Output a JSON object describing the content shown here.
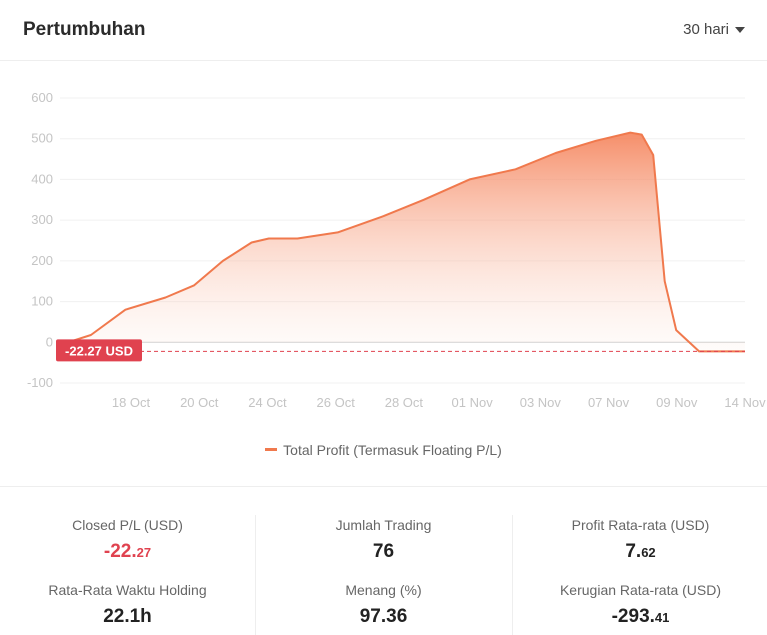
{
  "header": {
    "title": "Pertumbuhan",
    "range_label": "30 hari"
  },
  "chart_data": {
    "type": "area",
    "title": "Pertumbuhan",
    "xlabel": "",
    "ylabel": "",
    "ylim": [
      -100,
      600
    ],
    "yticks": [
      600,
      500,
      400,
      300,
      200,
      100,
      0,
      -100
    ],
    "xticks": [
      "18 Oct",
      "20 Oct",
      "24 Oct",
      "26 Oct",
      "28 Oct",
      "01 Nov",
      "03 Nov",
      "07 Nov",
      "09 Nov",
      "14 Nov"
    ],
    "grid": true,
    "legend": "bottom",
    "series": [
      {
        "name": "Total Profit (Termasuk Floating P/L)",
        "color": "#f0794d",
        "points": [
          [
            0.0,
            0
          ],
          [
            0.04,
            18
          ],
          [
            0.1,
            80
          ],
          [
            0.17,
            110
          ],
          [
            0.22,
            140
          ],
          [
            0.27,
            200
          ],
          [
            0.32,
            245
          ],
          [
            0.35,
            255
          ],
          [
            0.4,
            255
          ],
          [
            0.47,
            270
          ],
          [
            0.55,
            310
          ],
          [
            0.62,
            350
          ],
          [
            0.7,
            400
          ],
          [
            0.78,
            425
          ],
          [
            0.85,
            465
          ],
          [
            0.92,
            495
          ],
          [
            0.98,
            515
          ],
          [
            1.0,
            510
          ],
          [
            1.02,
            460
          ],
          [
            1.04,
            150
          ],
          [
            1.06,
            30
          ],
          [
            1.1,
            -22.27
          ],
          [
            1.18,
            -22.27
          ]
        ]
      }
    ],
    "current_value_label": "-22.27 USD",
    "current_value": -22.27
  },
  "stats": {
    "closed_pl": {
      "label": "Closed P/L (USD)",
      "int": "-22.",
      "dec": "27"
    },
    "jumlah_trading": {
      "label": "Jumlah Trading",
      "int": "76",
      "dec": ""
    },
    "profit_avg": {
      "label": "Profit Rata-rata (USD)",
      "int": "7.",
      "dec": "62"
    },
    "holding_avg": {
      "label": "Rata-Rata Waktu Holding",
      "int": "22.1h",
      "dec": ""
    },
    "menang": {
      "label": "Menang (%)",
      "int": "97.36",
      "dec": ""
    },
    "kerugian_avg": {
      "label": "Kerugian Rata-rata (USD)",
      "int": "-293.",
      "dec": "41"
    }
  },
  "colors": {
    "accent": "#f0794d",
    "negative": "#e0424f",
    "grid": "#f0f0f0",
    "axis_text": "#c4c4c4"
  }
}
